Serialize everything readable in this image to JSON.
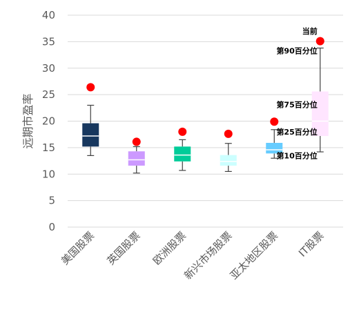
{
  "chart_data": {
    "type": "box",
    "ylabel": "远期市盈率",
    "ylim": [
      0,
      40
    ],
    "yticks": [
      0,
      5,
      10,
      15,
      20,
      25,
      30,
      35,
      40
    ],
    "grid": true,
    "categories": [
      "美国股票",
      "英国股票",
      "欧洲股票",
      "新兴市场股票",
      "亚太地区股票",
      "IT股票"
    ],
    "boxes": [
      {
        "category": "美国股票",
        "whisker_low": 13.5,
        "p25": 15.2,
        "median": 17.2,
        "p75": 19.6,
        "whisker_high": 23.0,
        "current": 26.4,
        "color": "#17375E"
      },
      {
        "category": "英国股票",
        "whisker_low": 10.2,
        "p25": 11.6,
        "median": 12.7,
        "p75": 14.3,
        "whisker_high": 15.2,
        "current": 16.1,
        "color": "#CC99FF"
      },
      {
        "category": "欧洲股票",
        "whisker_low": 10.7,
        "p25": 12.4,
        "median": 13.6,
        "p75": 15.2,
        "whisker_high": 16.5,
        "current": 18.0,
        "color": "#00CC99"
      },
      {
        "category": "新兴市场股票",
        "whisker_low": 10.5,
        "p25": 11.6,
        "median": 12.4,
        "p75": 13.6,
        "whisker_high": 15.8,
        "current": 17.6,
        "color": "#CCFFFF"
      },
      {
        "category": "亚太地区股票",
        "whisker_low": 13.0,
        "p25": 13.9,
        "median": 14.6,
        "p75": 15.9,
        "whisker_high": 18.4,
        "current": 19.9,
        "color": "#66CCFF"
      },
      {
        "category": "IT股票",
        "whisker_low": 14.2,
        "p25": 17.2,
        "median": 20.0,
        "p75": 25.6,
        "whisker_high": 33.8,
        "current": 35.1,
        "color": "#FFE5FF"
      }
    ],
    "current_marker_color": "#FF0000",
    "annotations": [
      {
        "text": "当前",
        "x": 5,
        "y": 37.0
      },
      {
        "text": "第90百分位",
        "x": 5,
        "y": 33.3
      },
      {
        "text": "第75百分位",
        "x": 5,
        "y": 23.1
      },
      {
        "text": "第25百分位",
        "x": 5,
        "y": 18.0
      },
      {
        "text": "第10百分位",
        "x": 5,
        "y": 13.5
      }
    ]
  }
}
